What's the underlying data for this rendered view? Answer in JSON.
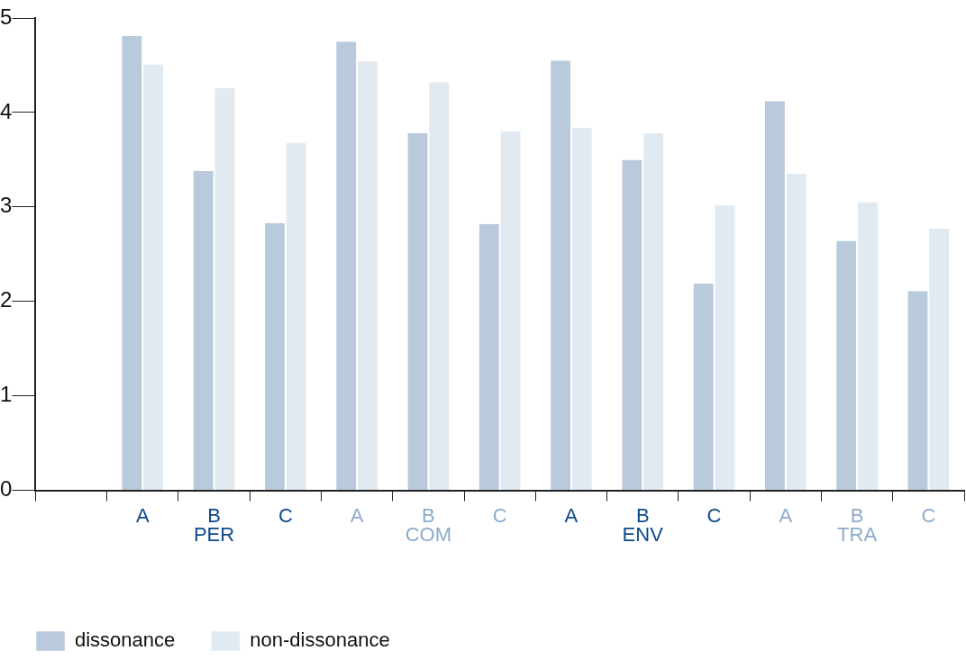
{
  "chart_data": {
    "type": "bar",
    "categories": [
      null,
      "A",
      "B",
      "C",
      "A",
      "B",
      "C",
      "A",
      "B",
      "C",
      "A",
      "B",
      "C"
    ],
    "series": [
      {
        "name": "dissonance",
        "color": "#b8cadb",
        "values": [
          null,
          4.81,
          3.38,
          2.83,
          4.75,
          3.78,
          2.82,
          4.55,
          3.5,
          2.19,
          4.12,
          2.64,
          2.11
        ]
      },
      {
        "name": "non-dissonance",
        "color": "#e1e9f1",
        "values": [
          null,
          4.51,
          4.26,
          3.68,
          4.54,
          4.32,
          3.8,
          3.84,
          3.78,
          3.02,
          3.35,
          3.05,
          2.77
        ]
      }
    ],
    "annotations": [
      "PER",
      "COM",
      "ENV",
      "TRA"
    ],
    "ylim": [
      0,
      5
    ],
    "yticks": [
      0,
      1,
      2,
      3,
      4,
      5
    ],
    "grid": false,
    "legend": "bottom left"
  }
}
